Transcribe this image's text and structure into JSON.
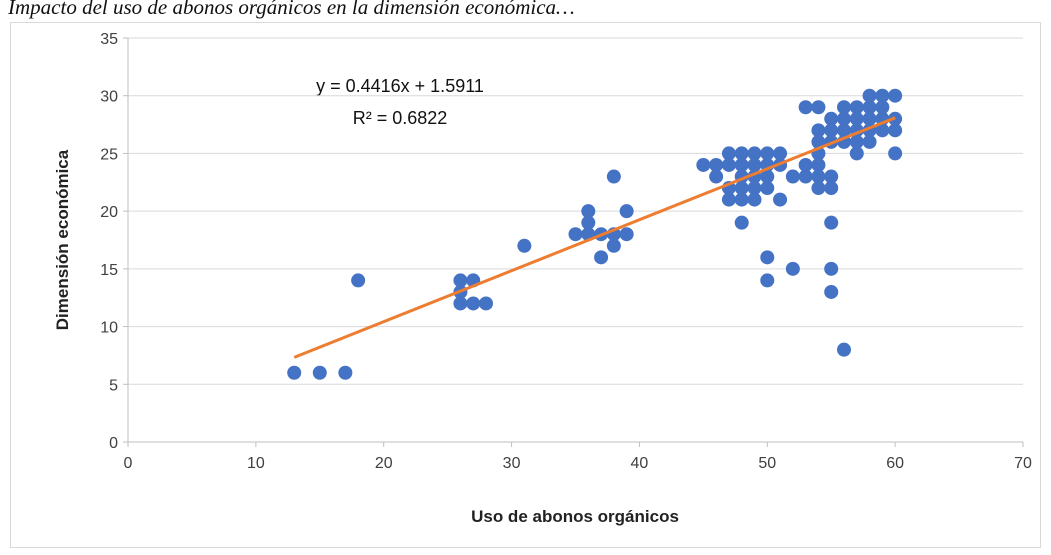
{
  "chart_data": {
    "type": "scatter",
    "caption": "Impacto del uso de abonos orgánicos en la dimensión económica…",
    "xlabel": "Uso de abonos orgánicos",
    "ylabel": "Dimensión económica",
    "xlim": [
      0,
      70
    ],
    "xticks": [
      0,
      10,
      20,
      30,
      40,
      50,
      60,
      70
    ],
    "ylim": [
      0,
      35
    ],
    "yticks": [
      0,
      5,
      10,
      15,
      20,
      25,
      30,
      35
    ],
    "grid": true,
    "series": [
      {
        "color": "#4472c4",
        "x": [
          13,
          15,
          17,
          18,
          26,
          26,
          26,
          27,
          27,
          28,
          31,
          35,
          36,
          36,
          36,
          37,
          37,
          38,
          38,
          38,
          39,
          39,
          45,
          46,
          46,
          47,
          47,
          47,
          47,
          48,
          48,
          48,
          48,
          48,
          48,
          49,
          49,
          49,
          49,
          49,
          50,
          50,
          50,
          50,
          50,
          50,
          51,
          51,
          51,
          52,
          52,
          53,
          53,
          53,
          54,
          54,
          54,
          54,
          54,
          54,
          54,
          55,
          55,
          55,
          55,
          55,
          55,
          55,
          55,
          56,
          56,
          56,
          56,
          56,
          57,
          57,
          57,
          57,
          57,
          58,
          58,
          58,
          58,
          58,
          59,
          59,
          59,
          59,
          60,
          60,
          60,
          60
        ],
        "values": [
          6,
          6,
          6,
          14,
          14,
          13,
          12,
          14,
          12,
          12,
          17,
          18,
          20,
          19,
          18,
          18,
          16,
          23,
          18,
          17,
          20,
          18,
          24,
          24,
          23,
          25,
          24,
          22,
          21,
          25,
          24,
          23,
          22,
          21,
          19,
          25,
          24,
          23,
          22,
          21,
          25,
          24,
          23,
          22,
          16,
          14,
          25,
          24,
          21,
          23,
          15,
          29,
          24,
          23,
          29,
          27,
          26,
          25,
          24,
          23,
          22,
          28,
          27,
          26,
          23,
          22,
          19,
          15,
          13,
          29,
          28,
          27,
          26,
          8,
          29,
          28,
          27,
          26,
          25,
          30,
          29,
          28,
          27,
          26,
          30,
          29,
          28,
          27,
          30,
          28,
          27,
          25
        ]
      }
    ],
    "trendline": {
      "color": "#ed7d31",
      "slope": 0.4416,
      "intercept": 1.5911,
      "x": [
        13,
        60
      ],
      "equation": "y = 0.4416x + 1.5911",
      "r2": "R² = 0.6822"
    }
  }
}
